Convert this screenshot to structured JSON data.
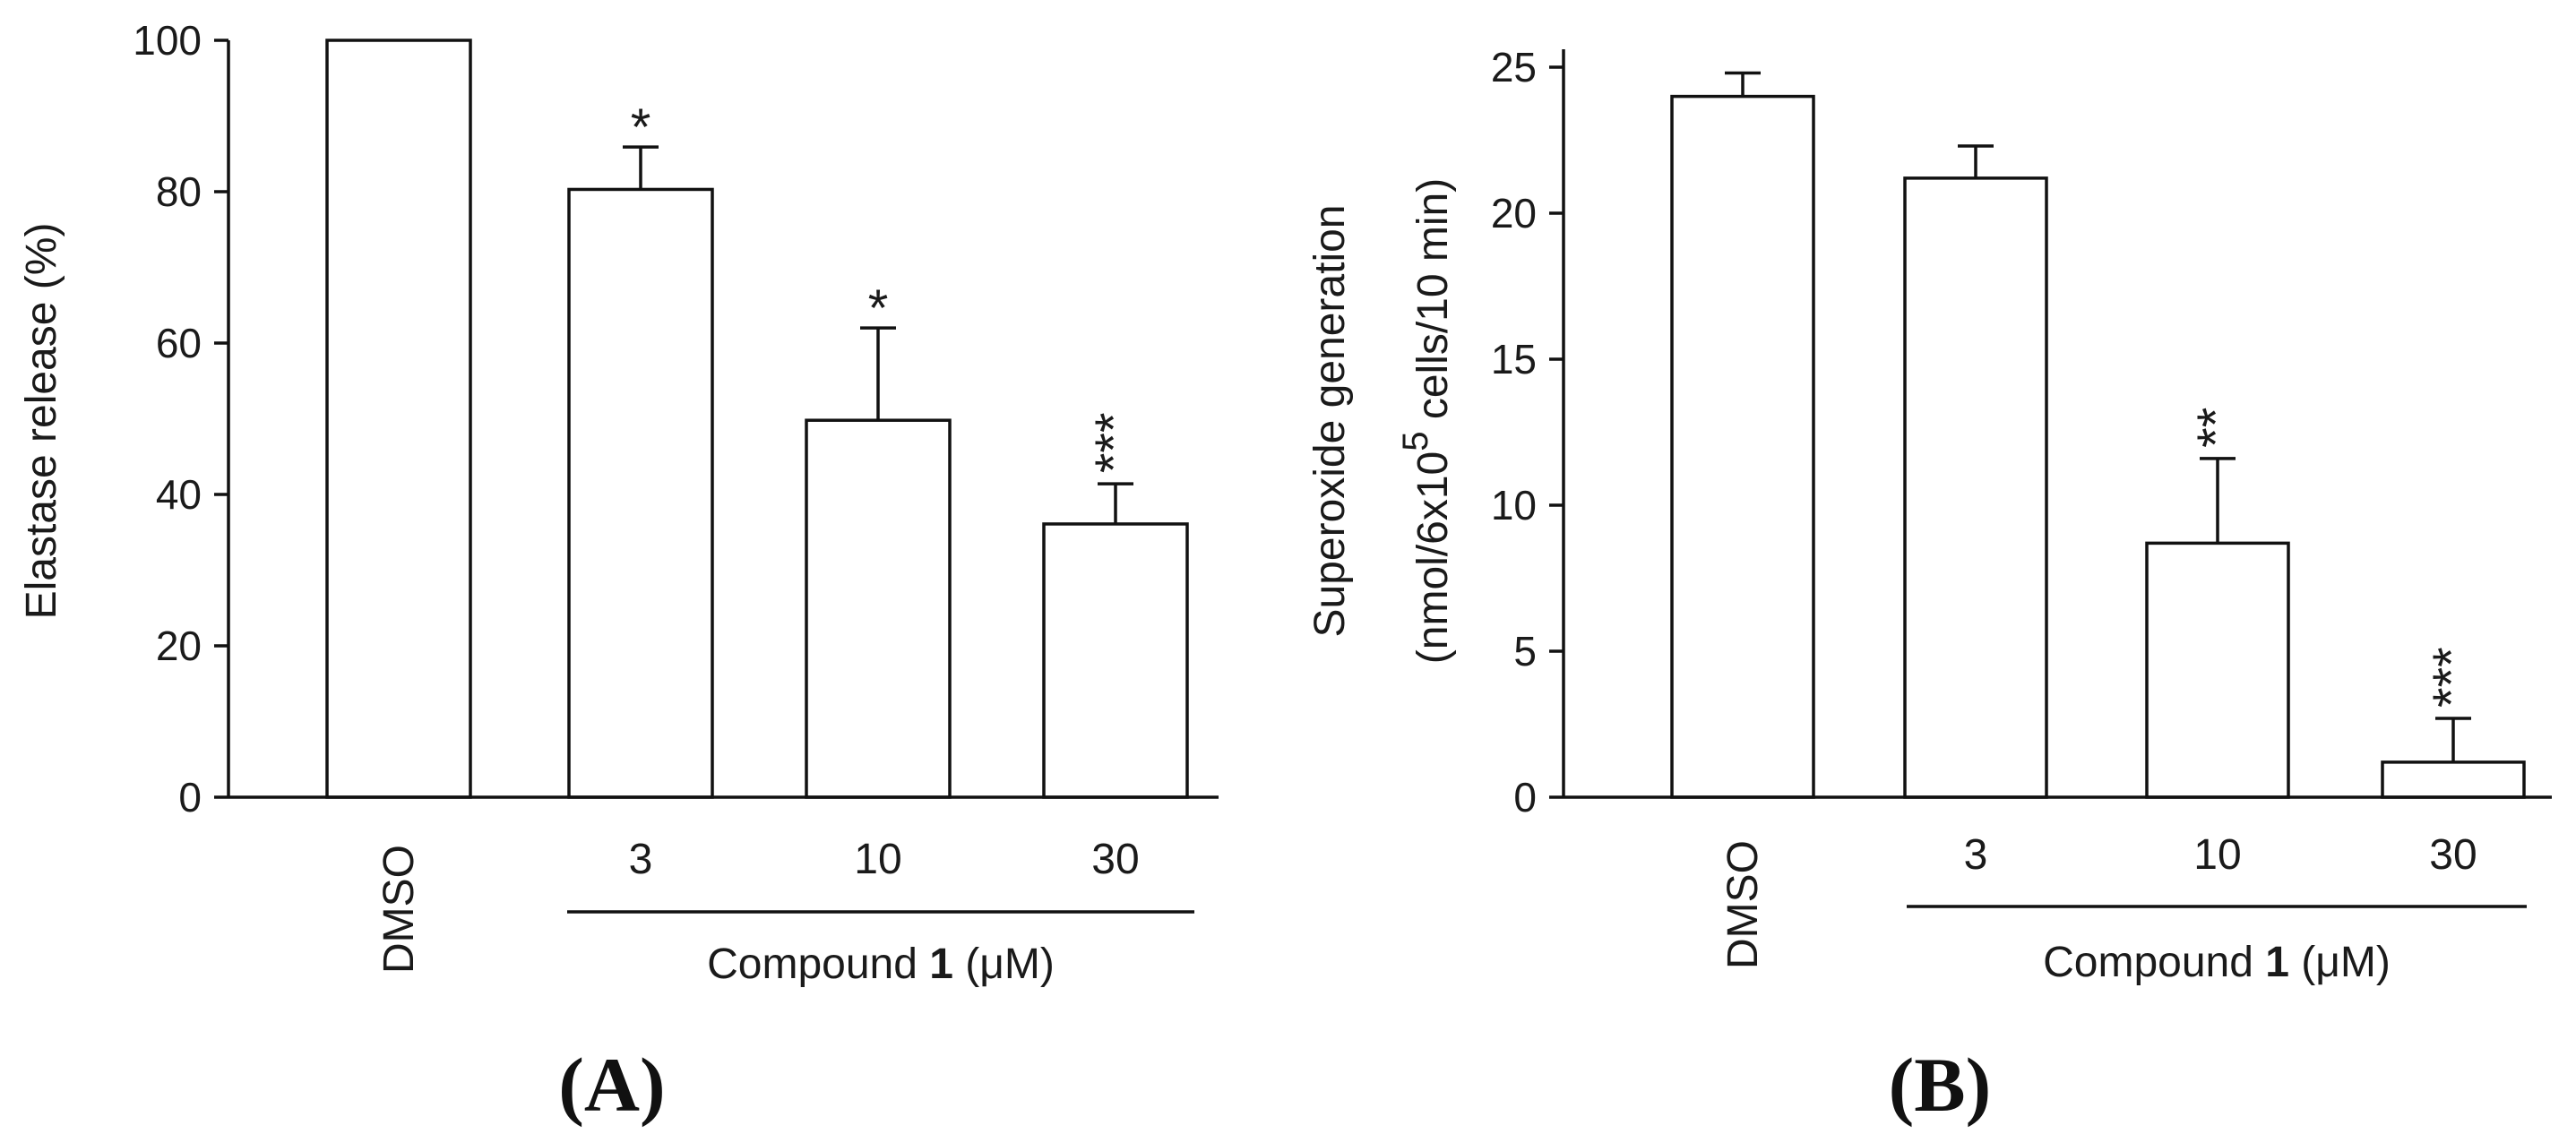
{
  "chart_data": [
    {
      "type": "bar",
      "panel": "(A)",
      "categories": [
        "DMSO",
        "3",
        "10",
        "30"
      ],
      "values": [
        100,
        80.3,
        49.8,
        36.1
      ],
      "errors": [
        0,
        5.6,
        12.2,
        5.3
      ],
      "significance": [
        "",
        "*",
        "*",
        "***"
      ],
      "ylabel": "Elastase release (%)",
      "ylim": [
        0,
        100
      ],
      "yticks": [
        0,
        20,
        40,
        60,
        80,
        100
      ],
      "group_label": {
        "prefix": "Compound ",
        "bold": "1",
        "suffix": " (μM)"
      },
      "grid": false
    },
    {
      "type": "bar",
      "panel": "(B)",
      "categories": [
        "DMSO",
        "3",
        "10",
        "30"
      ],
      "values": [
        24.0,
        21.2,
        8.7,
        1.2
      ],
      "errors": [
        0.8,
        1.1,
        2.9,
        1.5
      ],
      "significance": [
        "",
        "",
        "**",
        "***"
      ],
      "ylabel_line1": "Superoxide generation",
      "ylabel_line2_prefix": "(nmol/6x10",
      "ylabel_line2_sup": "5",
      "ylabel_line2_suffix": " cells/10 min)",
      "ylim": [
        0,
        25
      ],
      "yticks": [
        0,
        5,
        10,
        15,
        20,
        25
      ],
      "group_label": {
        "prefix": "Compound ",
        "bold": "1",
        "suffix": " (μM)"
      },
      "grid": false
    }
  ]
}
